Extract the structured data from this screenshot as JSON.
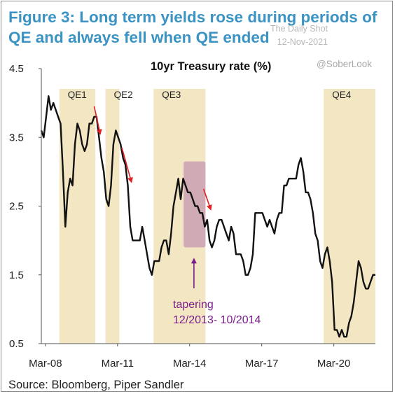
{
  "figure_title": "Figure 3: Long term yields rose during periods of QE and always fell when QE ended",
  "watermark": {
    "site": "The Daily Shot",
    "date": "12-Nov-2021",
    "handle": "@SoberLook"
  },
  "source": "Source: Bloomberg, Piper Sandler",
  "colors": {
    "title": "#3a93c3",
    "band": "#f3e6c3",
    "tapering": "#c9a0b4",
    "line": "#111111",
    "arrow": "#e02020",
    "annotation": "#7a1f8a"
  },
  "chart_data": {
    "type": "line",
    "title": "10yr Treasury rate (%)",
    "ylim": [
      0.5,
      4.5
    ],
    "yticks": [
      0.5,
      1.5,
      2.5,
      3.5,
      4.5
    ],
    "ytick_labels": [
      "0.5",
      "1.5",
      "2.5",
      "3.5",
      "4.5"
    ],
    "xlim": [
      2008.0,
      2021.9
    ],
    "xticks": [
      2008.17,
      2011.17,
      2014.17,
      2017.17,
      2020.17
    ],
    "xtick_labels": [
      "Mar-08",
      "Mar-11",
      "Mar-14",
      "Mar-17",
      "Mar-20"
    ],
    "grid": false,
    "regions": [
      {
        "label": "QE1",
        "start": 2008.75,
        "end": 2010.25
      },
      {
        "label": "QE2",
        "start": 2010.67,
        "end": 2011.25
      },
      {
        "label": "QE3",
        "start": 2012.67,
        "end": 2014.83
      },
      {
        "label": "QE4",
        "start": 2019.75,
        "end": 2021.9
      }
    ],
    "tapering": {
      "start": 2013.92,
      "end": 2014.83,
      "ymin": 1.9,
      "ymax": 3.15,
      "label_line1": "tapering",
      "label_line2": "12/2013- 10/2014"
    },
    "arrows": [
      {
        "x1": 2010.2,
        "y1": 3.95,
        "x2": 2010.45,
        "y2": 3.55
      },
      {
        "x1": 2011.35,
        "y1": 3.35,
        "x2": 2011.75,
        "y2": 2.85
      },
      {
        "x1": 2014.75,
        "y1": 2.75,
        "x2": 2015.05,
        "y2": 2.45
      }
    ],
    "series": [
      {
        "x": [
          2008.0,
          2008.1,
          2008.2,
          2008.3,
          2008.4,
          2008.5,
          2008.6,
          2008.7,
          2008.8,
          2008.9,
          2009.0,
          2009.1,
          2009.2,
          2009.3,
          2009.4,
          2009.5,
          2009.6,
          2009.7,
          2009.8,
          2009.9,
          2010.0,
          2010.1,
          2010.2,
          2010.3,
          2010.4,
          2010.5,
          2010.6,
          2010.7,
          2010.8,
          2010.9,
          2011.0,
          2011.1,
          2011.2,
          2011.3,
          2011.4,
          2011.5,
          2011.6,
          2011.7,
          2011.8,
          2011.9,
          2012.0,
          2012.1,
          2012.2,
          2012.3,
          2012.4,
          2012.5,
          2012.6,
          2012.7,
          2012.8,
          2012.9,
          2013.0,
          2013.1,
          2013.2,
          2013.3,
          2013.4,
          2013.5,
          2013.6,
          2013.7,
          2013.8,
          2013.9,
          2014.0,
          2014.1,
          2014.2,
          2014.3,
          2014.4,
          2014.5,
          2014.6,
          2014.7,
          2014.8,
          2014.9,
          2015.0,
          2015.1,
          2015.2,
          2015.3,
          2015.4,
          2015.5,
          2015.6,
          2015.7,
          2015.8,
          2015.9,
          2016.0,
          2016.1,
          2016.2,
          2016.3,
          2016.4,
          2016.5,
          2016.6,
          2016.7,
          2016.8,
          2016.9,
          2017.0,
          2017.1,
          2017.2,
          2017.3,
          2017.4,
          2017.5,
          2017.6,
          2017.7,
          2017.8,
          2017.9,
          2018.0,
          2018.1,
          2018.2,
          2018.3,
          2018.4,
          2018.5,
          2018.6,
          2018.7,
          2018.8,
          2018.9,
          2019.0,
          2019.1,
          2019.2,
          2019.3,
          2019.4,
          2019.5,
          2019.6,
          2019.7,
          2019.8,
          2019.9,
          2020.0,
          2020.1,
          2020.2,
          2020.3,
          2020.4,
          2020.5,
          2020.6,
          2020.7,
          2020.8,
          2020.9,
          2021.0,
          2021.1,
          2021.2,
          2021.3,
          2021.4,
          2021.5,
          2021.6,
          2021.7,
          2021.8,
          2021.9
        ],
        "y": [
          3.6,
          3.5,
          3.8,
          4.1,
          3.9,
          4.0,
          3.9,
          3.8,
          3.7,
          3.0,
          2.2,
          2.7,
          2.9,
          2.8,
          3.4,
          3.7,
          3.6,
          3.4,
          3.3,
          3.4,
          3.7,
          3.7,
          3.8,
          3.8,
          3.5,
          3.2,
          3.0,
          2.6,
          2.5,
          2.8,
          3.4,
          3.6,
          3.5,
          3.4,
          3.2,
          3.1,
          2.8,
          2.2,
          2.0,
          2.0,
          2.0,
          2.0,
          2.2,
          2.0,
          1.8,
          1.6,
          1.5,
          1.7,
          1.7,
          1.7,
          1.9,
          2.0,
          2.0,
          1.8,
          2.1,
          2.5,
          2.7,
          2.9,
          2.6,
          2.9,
          2.8,
          2.7,
          2.7,
          2.6,
          2.5,
          2.5,
          2.4,
          2.4,
          2.2,
          2.3,
          2.0,
          1.9,
          2.0,
          2.2,
          2.3,
          2.3,
          2.2,
          2.1,
          2.0,
          2.2,
          2.1,
          1.8,
          1.8,
          1.8,
          1.7,
          1.5,
          1.5,
          1.6,
          1.8,
          2.4,
          2.4,
          2.4,
          2.4,
          2.3,
          2.2,
          2.3,
          2.2,
          2.1,
          2.3,
          2.4,
          2.4,
          2.8,
          2.8,
          2.9,
          2.9,
          2.9,
          2.9,
          3.1,
          3.2,
          3.0,
          2.7,
          2.7,
          2.6,
          2.4,
          2.1,
          2.0,
          1.7,
          1.6,
          1.8,
          1.9,
          1.7,
          1.4,
          0.7,
          0.7,
          0.6,
          0.7,
          0.6,
          0.6,
          0.8,
          0.9,
          1.1,
          1.4,
          1.7,
          1.6,
          1.4,
          1.3,
          1.3,
          1.4,
          1.5,
          1.5
        ]
      }
    ]
  }
}
